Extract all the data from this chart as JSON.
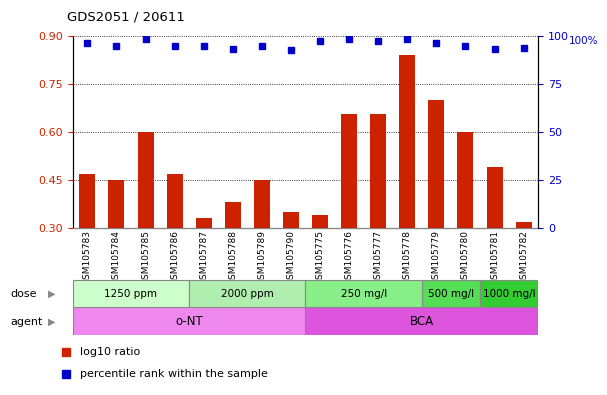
{
  "title": "GDS2051 / 20611",
  "samples": [
    "GSM105783",
    "GSM105784",
    "GSM105785",
    "GSM105786",
    "GSM105787",
    "GSM105788",
    "GSM105789",
    "GSM105790",
    "GSM105775",
    "GSM105776",
    "GSM105777",
    "GSM105778",
    "GSM105779",
    "GSM105780",
    "GSM105781",
    "GSM105782"
  ],
  "bar_values": [
    0.47,
    0.45,
    0.6,
    0.47,
    0.33,
    0.38,
    0.45,
    0.35,
    0.34,
    0.655,
    0.655,
    0.84,
    0.7,
    0.6,
    0.49,
    0.32
  ],
  "percentile_values": [
    0.878,
    0.868,
    0.89,
    0.868,
    0.868,
    0.858,
    0.868,
    0.855,
    0.885,
    0.892,
    0.885,
    0.892,
    0.878,
    0.868,
    0.858,
    0.862
  ],
  "bar_color": "#cc2200",
  "percentile_color": "#0000cc",
  "ylim_left": [
    0.3,
    0.9
  ],
  "ylim_right": [
    0,
    100
  ],
  "yticks_left": [
    0.3,
    0.45,
    0.6,
    0.75,
    0.9
  ],
  "yticks_right": [
    0,
    25,
    50,
    75,
    100
  ],
  "dose_groups": [
    {
      "label": "1250 ppm",
      "start": 0,
      "end": 4,
      "color": "#ccffcc"
    },
    {
      "label": "2000 ppm",
      "start": 4,
      "end": 8,
      "color": "#aaddaa"
    },
    {
      "label": "250 mg/l",
      "start": 8,
      "end": 12,
      "color": "#88ee88"
    },
    {
      "label": "500 mg/l",
      "start": 12,
      "end": 14,
      "color": "#55dd55"
    },
    {
      "label": "1000 mg/l",
      "start": 14,
      "end": 16,
      "color": "#33cc33"
    }
  ],
  "agent_groups": [
    {
      "label": "o-NT",
      "start": 0,
      "end": 8,
      "color": "#ee88ee"
    },
    {
      "label": "BCA",
      "start": 8,
      "end": 16,
      "color": "#dd55dd"
    }
  ],
  "dose_label": "dose",
  "agent_label": "agent",
  "legend_bar_label": "log10 ratio",
  "legend_pct_label": "percentile rank within the sample",
  "bg_color": "#ffffff",
  "left_tick_color": "#cc2200",
  "right_tick_color": "#0000cc",
  "xlabel_bg": "#dddddd",
  "xlabel_fontsize": 6.5,
  "bar_width": 0.55
}
